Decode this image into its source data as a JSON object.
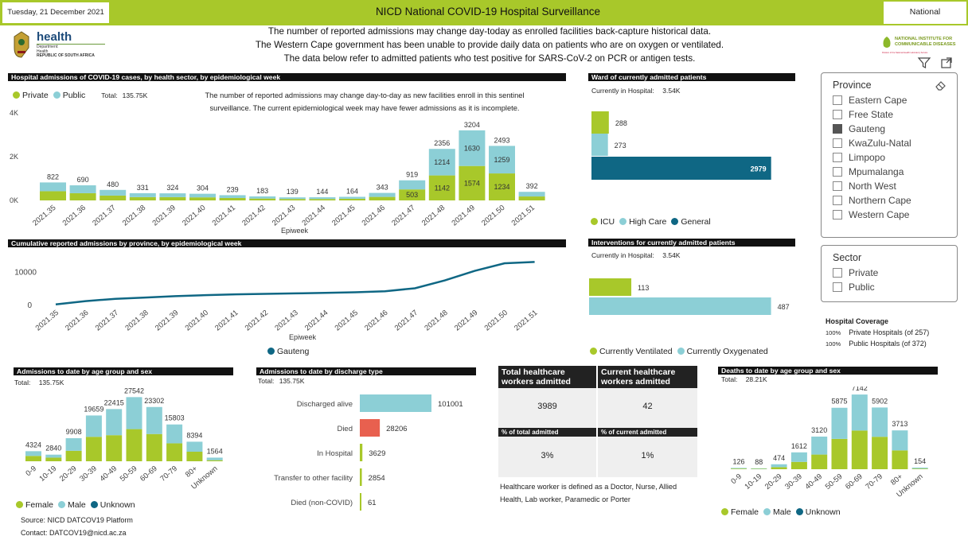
{
  "header": {
    "date": "Tuesday, 21 December 2021",
    "title": "NICD National COVID-19 Hospital Surveillance",
    "scope": "National"
  },
  "notice": [
    "The number of reported admissions may change day-today as enrolled facilities back-capture historical data.",
    "The Western Cape government has been unable to provide daily data on patients who are on oxygen or ventilated.",
    "The data below refer to admitted patients who test positive for SARS-CoV-2 on PCR or antigen tests."
  ],
  "logos": {
    "health_name": "health",
    "health_sub1": "Department:",
    "health_sub2": "Health",
    "health_sub3": "REPUBLIC OF SOUTH AFRICA",
    "nicd_line1": "NATIONAL INSTITUTE FOR",
    "nicd_line2": "COMMUNICABLE DISEASES",
    "nicd_line3": "Division of the National Health Laboratory Service"
  },
  "colors": {
    "green": "#a8c82a",
    "blue": "#8ccfd6",
    "navy": "#0f6784",
    "red": "#e8604f",
    "dark": "#111111"
  },
  "admissions_sector": {
    "title": "Hospital admissions of COVID-19 cases, by health sector, by epidemiological week",
    "legend": [
      "Private",
      "Public"
    ],
    "total_label": "Total:",
    "total_value": "135.75K",
    "note": "The number of reported admissions may change day-to-day as new facilities enroll in this sentinel surveillance. The current epidemiological week may have fewer admissions as it is incomplete.",
    "xlabel": "Epiweek",
    "y_ticks": [
      "0K",
      "2K",
      "4K"
    ]
  },
  "cumulative": {
    "title": "Cumulative reported admissions by province, by epidemiological week",
    "xlabel": "Epiweek",
    "legend": [
      "Gauteng"
    ],
    "y_ticks": [
      "0",
      "10000"
    ]
  },
  "ward": {
    "title": "Ward of currently admitted patients",
    "current_label": "Currently in Hospital:",
    "current_value": "3.54K",
    "legend": [
      "ICU",
      "High Care",
      "General"
    ]
  },
  "interventions": {
    "title": "Interventions for currently admitted patients",
    "current_label": "Currently in Hospital:",
    "current_value": "3.54K",
    "legend": [
      "Currently Ventilated",
      "Currently Oxygenated"
    ]
  },
  "province_slicer": {
    "title": "Province",
    "items": [
      {
        "label": "Eastern Cape",
        "selected": false
      },
      {
        "label": "Free State",
        "selected": false
      },
      {
        "label": "Gauteng",
        "selected": true
      },
      {
        "label": "KwaZulu-Natal",
        "selected": false
      },
      {
        "label": "Limpopo",
        "selected": false
      },
      {
        "label": "Mpumalanga",
        "selected": false
      },
      {
        "label": "North West",
        "selected": false
      },
      {
        "label": "Northern Cape",
        "selected": false
      },
      {
        "label": "Western Cape",
        "selected": false
      }
    ]
  },
  "sector_slicer": {
    "title": "Sector",
    "items": [
      {
        "label": "Private",
        "selected": false
      },
      {
        "label": "Public",
        "selected": false
      }
    ]
  },
  "coverage": {
    "title": "Hospital Coverage",
    "rows": [
      {
        "pct": "100%",
        "label": "Private Hospitals (of 257)"
      },
      {
        "pct": "100%",
        "label": "Public Hospitals (of 372)"
      }
    ]
  },
  "age_admissions": {
    "title": "Admissions to date by age group and sex",
    "total_label": "Total:",
    "total_value": "135.75K",
    "legend": [
      "Female",
      "Male",
      "Unknown"
    ]
  },
  "discharge": {
    "title": "Admissions to date by discharge type",
    "total_label": "Total:",
    "total_value": "135.75K"
  },
  "hcw": {
    "head_total": "Total healthcare workers admitted",
    "head_current": "Current healthcare workers admitted",
    "val_total": "3989",
    "val_current": "42",
    "sub_total": "% of total admitted",
    "sub_current": "% of current admitted",
    "pct_total": "3%",
    "pct_current": "1%",
    "definition": "Healthcare worker is defined as a Doctor, Nurse, Allied Health,  Lab worker, Paramedic or Porter"
  },
  "deaths": {
    "title": "Deaths to date by age group and sex",
    "total_label": "Total:",
    "total_value": "28.21K",
    "legend": [
      "Female",
      "Male",
      "Unknown"
    ]
  },
  "footer": {
    "source": "Source: NICD DATCOV19 Platform",
    "contact": "Contact: DATCOV19@nicd.ac.za"
  },
  "chart_data": [
    {
      "id": "sector",
      "type": "bar",
      "stacked": true,
      "categories": [
        "2021.35",
        "2021.36",
        "2021.37",
        "2021.38",
        "2021.39",
        "2021.40",
        "2021.41",
        "2021.42",
        "2021.43",
        "2021.44",
        "2021.45",
        "2021.46",
        "2021.47",
        "2021.48",
        "2021.49",
        "2021.50",
        "2021.51"
      ],
      "series": [
        {
          "name": "Private",
          "values": [
            420,
            330,
            220,
            150,
            150,
            140,
            110,
            85,
            65,
            65,
            75,
            160,
            503,
            1142,
            1574,
            1234,
            180
          ]
        },
        {
          "name": "Public",
          "values": [
            402,
            360,
            260,
            181,
            174,
            164,
            129,
            98,
            74,
            79,
            89,
            183,
            416,
            1214,
            1630,
            1259,
            212
          ]
        }
      ],
      "totals": [
        822,
        690,
        480,
        331,
        324,
        304,
        239,
        183,
        139,
        144,
        164,
        343,
        919,
        2356,
        3204,
        2493,
        392
      ],
      "labels": [
        "",
        "",
        "",
        "",
        "",
        "",
        "",
        "",
        "",
        "",
        "",
        "",
        "503",
        "1142|1214",
        "1574|1630",
        "1234|1259",
        ""
      ],
      "xlabel": "Epiweek",
      "ylim": [
        0,
        4000
      ]
    },
    {
      "id": "cumulative",
      "type": "line",
      "categories": [
        "2021.35",
        "2021.36",
        "2021.37",
        "2021.38",
        "2021.39",
        "2021.40",
        "2021.41",
        "2021.42",
        "2021.43",
        "2021.44",
        "2021.45",
        "2021.46",
        "2021.47",
        "2021.48",
        "2021.49",
        "2021.50",
        "2021.51"
      ],
      "series": [
        {
          "name": "Gauteng",
          "values": [
            300,
            1300,
            2000,
            2400,
            2800,
            3100,
            3350,
            3500,
            3650,
            3800,
            4000,
            4300,
            5200,
            7600,
            10500,
            12800,
            13200
          ]
        }
      ],
      "ylim": [
        0,
        14500
      ]
    },
    {
      "id": "ward",
      "type": "bar",
      "orientation": "horizontal",
      "categories": [
        "ICU",
        "High Care",
        "General"
      ],
      "values": [
        288,
        273,
        2979
      ],
      "max": 3300
    },
    {
      "id": "interventions",
      "type": "bar",
      "orientation": "horizontal",
      "categories": [
        "Currently Ventilated",
        "Currently Oxygenated"
      ],
      "values": [
        113,
        487
      ],
      "max": 490
    },
    {
      "id": "age",
      "type": "bar",
      "stacked": true,
      "categories": [
        "0-9",
        "10-19",
        "20-29",
        "30-39",
        "40-49",
        "50-59",
        "60-69",
        "70-79",
        "80+",
        "Unknown"
      ],
      "series": [
        {
          "name": "Female",
          "values": [
            2300,
            1560,
            4500,
            10500,
            11200,
            13800,
            11700,
            7700,
            4100,
            450
          ]
        },
        {
          "name": "Male",
          "values": [
            2024,
            1280,
            5408,
            9159,
            11215,
            13742,
            11602,
            8103,
            4294,
            1114
          ]
        }
      ],
      "totals": [
        4324,
        2840,
        9908,
        19659,
        22415,
        27542,
        23302,
        15803,
        8394,
        1564
      ],
      "ylim": [
        0,
        28000
      ]
    },
    {
      "id": "discharge",
      "type": "bar",
      "orientation": "horizontal",
      "categories": [
        "Discharged alive",
        "Died",
        "In Hospital",
        "Transfer to other facility",
        "Died (non-COVID)"
      ],
      "values": [
        101001,
        28206,
        3629,
        2854,
        61
      ],
      "max": 101001
    },
    {
      "id": "deaths",
      "type": "bar",
      "stacked": true,
      "categories": [
        "0-9",
        "10-19",
        "20-29",
        "30-39",
        "40-49",
        "50-59",
        "60-69",
        "70-79",
        "80+",
        "Unknown"
      ],
      "series": [
        {
          "name": "Female",
          "values": [
            60,
            40,
            200,
            700,
            1400,
            2900,
            3700,
            3100,
            1800,
            60
          ]
        },
        {
          "name": "Male",
          "values": [
            66,
            48,
            274,
            912,
            1720,
            2975,
            3442,
            2802,
            1913,
            94
          ]
        }
      ],
      "totals": [
        126,
        88,
        474,
        1612,
        3120,
        5875,
        7142,
        5902,
        3713,
        154
      ],
      "ylim": [
        0,
        7300
      ]
    }
  ]
}
